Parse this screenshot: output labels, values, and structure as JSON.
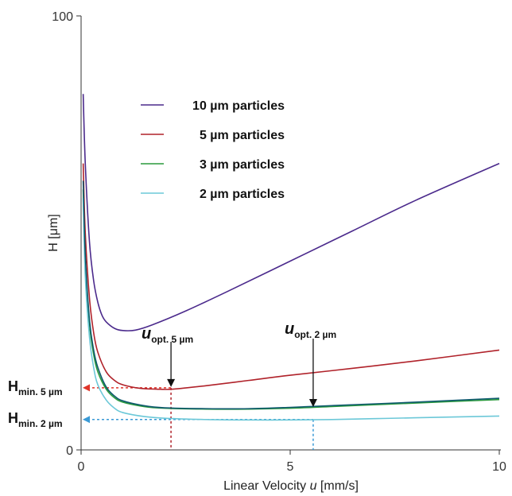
{
  "chart_data": {
    "type": "line",
    "xlabel_main": "Linear Velocity ",
    "xlabel_var": "u",
    "xlabel_unit": " [mm/s]",
    "ylabel": "H [μm]",
    "xlim": [
      0,
      10
    ],
    "ylim": [
      0,
      100
    ],
    "x_ticks": [
      0,
      5,
      10
    ],
    "y_ticks": [
      0,
      100
    ],
    "x_tick_labels": [
      "0",
      "5",
      "10"
    ],
    "y_tick_labels": [
      "0",
      "100"
    ],
    "grid": false,
    "legend_position": "top-center",
    "series": [
      {
        "name": "10 µm particles",
        "color": "#4b2a8c",
        "points": [
          [
            0.05,
            82
          ],
          [
            0.1,
            66
          ],
          [
            0.2,
            48
          ],
          [
            0.3,
            39
          ],
          [
            0.4,
            34
          ],
          [
            0.5,
            31
          ],
          [
            0.6,
            29.5
          ],
          [
            0.8,
            28
          ],
          [
            1.0,
            27.5
          ],
          [
            1.3,
            27.6
          ],
          [
            1.7,
            28.8
          ],
          [
            2.5,
            32
          ],
          [
            3.5,
            36.5
          ],
          [
            5,
            43.5
          ],
          [
            6.5,
            50.5
          ],
          [
            8,
            57.5
          ],
          [
            10,
            66
          ]
        ]
      },
      {
        "name": "5 µm particles",
        "color": "#b0222a",
        "points": [
          [
            0.05,
            66
          ],
          [
            0.1,
            50
          ],
          [
            0.2,
            35
          ],
          [
            0.3,
            27
          ],
          [
            0.4,
            22.5
          ],
          [
            0.6,
            18
          ],
          [
            0.8,
            16
          ],
          [
            1.0,
            15
          ],
          [
            1.4,
            14.2
          ],
          [
            1.8,
            14
          ],
          [
            2.2,
            14
          ],
          [
            3,
            14.8
          ],
          [
            4,
            16
          ],
          [
            5,
            17.2
          ],
          [
            6.5,
            18.8
          ],
          [
            8,
            20.5
          ],
          [
            10,
            23
          ]
        ]
      },
      {
        "name": "3 µm particles",
        "color": "#2a9a3c",
        "points": [
          [
            0.05,
            60
          ],
          [
            0.1,
            43
          ],
          [
            0.2,
            29
          ],
          [
            0.3,
            22
          ],
          [
            0.4,
            18
          ],
          [
            0.6,
            14
          ],
          [
            0.8,
            12
          ],
          [
            1,
            11
          ],
          [
            1.5,
            10
          ],
          [
            2,
            9.6
          ],
          [
            3,
            9.4
          ],
          [
            4,
            9.4
          ],
          [
            5,
            9.6
          ],
          [
            6,
            10
          ],
          [
            7,
            10.4
          ],
          [
            8,
            10.8
          ],
          [
            10,
            11.6
          ]
        ]
      },
      {
        "name": "2 µm particles",
        "color": "#6cc8d8",
        "points": [
          [
            0.05,
            58
          ],
          [
            0.1,
            40
          ],
          [
            0.2,
            26
          ],
          [
            0.3,
            19
          ],
          [
            0.4,
            15
          ],
          [
            0.6,
            11.5
          ],
          [
            0.8,
            9.6
          ],
          [
            1,
            8.6
          ],
          [
            1.5,
            7.7
          ],
          [
            2,
            7.3
          ],
          [
            3,
            7.0
          ],
          [
            4,
            6.9
          ],
          [
            5,
            6.9
          ],
          [
            6,
            7.0
          ],
          [
            7,
            7.2
          ],
          [
            8,
            7.4
          ],
          [
            10,
            7.8
          ]
        ]
      },
      {
        "name": "",
        "color": "#0f5a6e",
        "points": [
          [
            0.05,
            62
          ],
          [
            0.1,
            45
          ],
          [
            0.2,
            30
          ],
          [
            0.3,
            23
          ],
          [
            0.4,
            19
          ],
          [
            0.6,
            14.5
          ],
          [
            0.8,
            12.4
          ],
          [
            1,
            11.3
          ],
          [
            1.5,
            10.2
          ],
          [
            2,
            9.7
          ],
          [
            3,
            9.5
          ],
          [
            4,
            9.5
          ],
          [
            5,
            9.8
          ],
          [
            6,
            10.2
          ],
          [
            7,
            10.6
          ],
          [
            8,
            11
          ],
          [
            10,
            11.9
          ]
        ]
      }
    ],
    "annotations": {
      "uopt5": {
        "var": "u",
        "sub": "opt. 5 µm",
        "x": 2.15
      },
      "uopt2": {
        "var": "u",
        "sub": "opt. 2 µm",
        "x": 5.55
      },
      "hmin5": {
        "var": "H",
        "sub": "min. 5 µm",
        "y": 14.3,
        "color": "#e0352a"
      },
      "hmin2": {
        "var": "H",
        "sub": "min. 2 µm",
        "y": 7.0,
        "color": "#3a9ad6"
      }
    }
  }
}
